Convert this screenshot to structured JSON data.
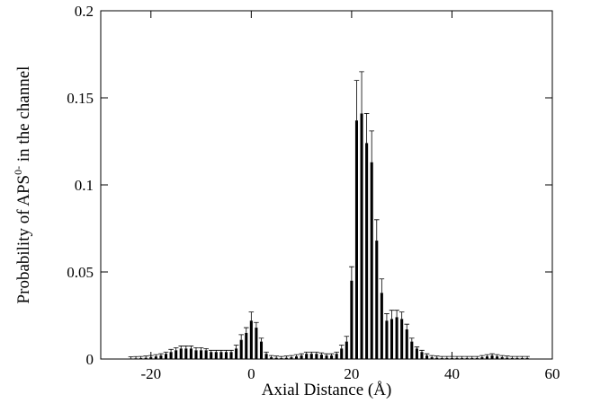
{
  "chart_data": {
    "type": "bar",
    "xlabel": "Axial Distance (Å)",
    "ylabel": [
      "Probability of APS",
      "0-",
      " in the channel"
    ],
    "x": [
      -24,
      -23,
      -22,
      -21,
      -20,
      -19,
      -18,
      -17,
      -16,
      -15,
      -14,
      -13,
      -12,
      -11,
      -10,
      -9,
      -8,
      -7,
      -6,
      -5,
      -4,
      -3,
      -2,
      -1,
      0,
      1,
      2,
      3,
      4,
      5,
      6,
      7,
      8,
      9,
      10,
      11,
      12,
      13,
      14,
      15,
      16,
      17,
      18,
      19,
      20,
      21,
      22,
      23,
      24,
      25,
      26,
      27,
      28,
      29,
      30,
      31,
      32,
      33,
      34,
      35,
      36,
      37,
      38,
      39,
      40,
      41,
      42,
      43,
      44,
      45,
      46,
      47,
      48,
      49,
      50,
      51,
      52,
      53,
      54,
      55
    ],
    "values": [
      0.0003,
      0.0004,
      0.0005,
      0.0007,
      0.001,
      0.0015,
      0.002,
      0.003,
      0.004,
      0.005,
      0.006,
      0.006,
      0.006,
      0.005,
      0.005,
      0.005,
      0.004,
      0.004,
      0.004,
      0.004,
      0.004,
      0.006,
      0.011,
      0.015,
      0.022,
      0.018,
      0.01,
      0.003,
      0.001,
      0.0007,
      0.0005,
      0.0007,
      0.001,
      0.0015,
      0.002,
      0.003,
      0.003,
      0.003,
      0.0025,
      0.002,
      0.002,
      0.003,
      0.006,
      0.01,
      0.045,
      0.137,
      0.141,
      0.124,
      0.113,
      0.068,
      0.038,
      0.022,
      0.023,
      0.024,
      0.023,
      0.017,
      0.01,
      0.006,
      0.004,
      0.002,
      0.001,
      0.0007,
      0.0005,
      0.0005,
      0.0005,
      0.0005,
      0.0005,
      0.0005,
      0.0005,
      0.0005,
      0.001,
      0.0015,
      0.002,
      0.0015,
      0.001,
      0.0007,
      0.0005,
      0.0005,
      0.0005,
      0.0005
    ],
    "errors": [
      0.001,
      0.001,
      0.001,
      0.001,
      0.001,
      0.001,
      0.001,
      0.001,
      0.0015,
      0.0015,
      0.0015,
      0.0015,
      0.0015,
      0.0015,
      0.0015,
      0.001,
      0.001,
      0.001,
      0.001,
      0.001,
      0.001,
      0.002,
      0.003,
      0.003,
      0.005,
      0.003,
      0.002,
      0.001,
      0.001,
      0.001,
      0.001,
      0.001,
      0.001,
      0.001,
      0.001,
      0.001,
      0.001,
      0.001,
      0.001,
      0.001,
      0.001,
      0.001,
      0.002,
      0.003,
      0.008,
      0.023,
      0.024,
      0.017,
      0.018,
      0.012,
      0.008,
      0.004,
      0.005,
      0.004,
      0.004,
      0.003,
      0.002,
      0.001,
      0.001,
      0.001,
      0.001,
      0.001,
      0.001,
      0.001,
      0.001,
      0.001,
      0.001,
      0.001,
      0.001,
      0.001,
      0.001,
      0.001,
      0.001,
      0.001,
      0.001,
      0.001,
      0.001,
      0.001,
      0.001,
      0.001
    ],
    "color": "#000000",
    "xlim": [
      -30,
      60
    ],
    "xticks": [
      -20,
      0,
      20,
      40,
      60
    ],
    "ylim": [
      0,
      0.2
    ],
    "yticks": [
      0,
      0.05,
      0.1,
      0.15,
      0.2
    ]
  }
}
